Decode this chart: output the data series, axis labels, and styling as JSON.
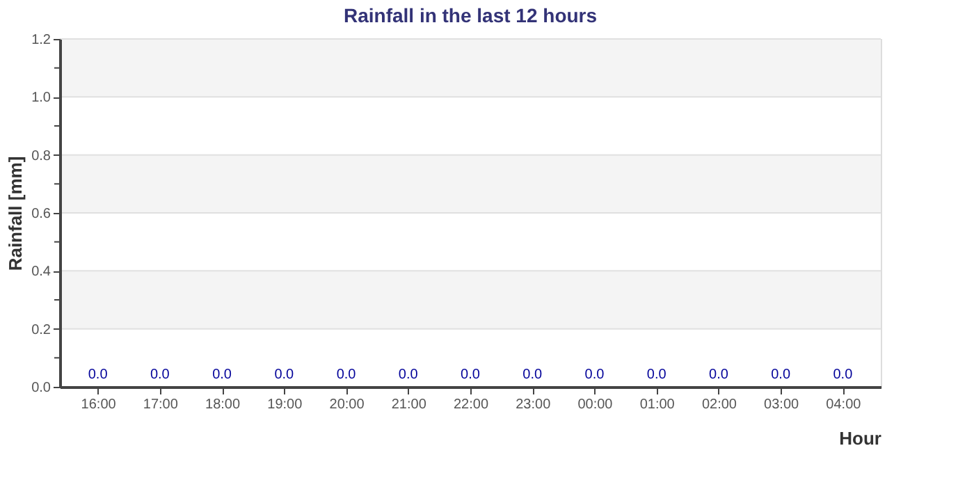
{
  "chart_data": {
    "type": "bar",
    "title": "Rainfall in the last 12 hours",
    "xlabel": "Hour",
    "ylabel": "Rainfall [mm]",
    "categories": [
      "16:00",
      "17:00",
      "18:00",
      "19:00",
      "20:00",
      "21:00",
      "22:00",
      "23:00",
      "00:00",
      "01:00",
      "02:00",
      "03:00",
      "04:00"
    ],
    "values": [
      0,
      0,
      0,
      0,
      0,
      0,
      0,
      0,
      0,
      0,
      0,
      0,
      0
    ],
    "value_labels": [
      "0.0",
      "0.0",
      "0.0",
      "0.0",
      "0.0",
      "0.0",
      "0.0",
      "0.0",
      "0.0",
      "0.0",
      "0.0",
      "0.0",
      "0.0"
    ],
    "ylim": [
      0,
      1.2
    ],
    "yticks": [
      {
        "value": 0,
        "label": "0.0"
      },
      {
        "value": 0.1,
        "label": null
      },
      {
        "value": 0.2,
        "label": "0.2"
      },
      {
        "value": 0.3,
        "label": null
      },
      {
        "value": 0.4,
        "label": "0.4"
      },
      {
        "value": 0.5,
        "label": null
      },
      {
        "value": 0.6,
        "label": "0.6"
      },
      {
        "value": 0.7,
        "label": null
      },
      {
        "value": 0.8,
        "label": "0.8"
      },
      {
        "value": 0.9,
        "label": null
      },
      {
        "value": 1.0,
        "label": "1.0"
      },
      {
        "value": 1.1,
        "label": null
      },
      {
        "value": 1.2,
        "label": "1.2"
      }
    ],
    "bands": [
      {
        "axis": "y",
        "from": 0.2,
        "to": 0.4,
        "color": "#f4f4f4"
      },
      {
        "axis": "y",
        "from": 0.6,
        "to": 0.8,
        "color": "#f4f4f4"
      },
      {
        "axis": "y",
        "from": 1.0,
        "to": 1.2,
        "color": "#f4f4f4"
      }
    ],
    "grid": "y"
  }
}
